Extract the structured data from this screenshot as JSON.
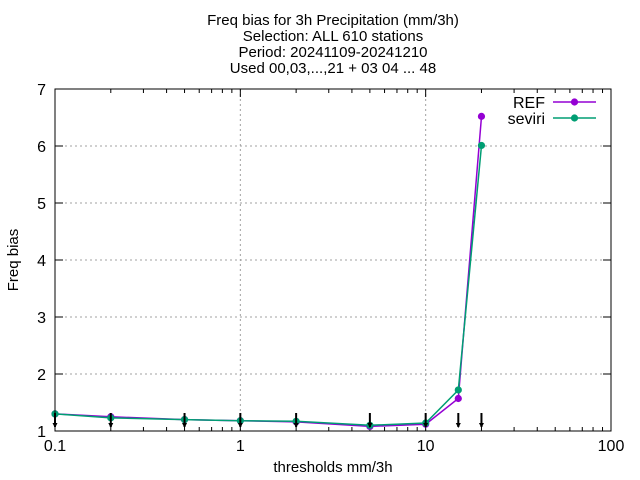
{
  "chart_data": {
    "type": "line",
    "title": [
      "Freq bias  for 3h Precipitation (mm/3h)",
      "Selection: ALL    610 stations",
      "Period: 20241109-20241210",
      "Used 00,03,...,21 + 03 04 ... 48"
    ],
    "xlabel": "thresholds mm/3h",
    "ylabel": "Freq bias",
    "xscale": "log",
    "xlim": [
      0.1,
      100
    ],
    "ylim": [
      1,
      7
    ],
    "xticks": [
      0.1,
      1,
      10,
      100
    ],
    "xtick_labels": [
      "0.1",
      "1",
      "10",
      "100"
    ],
    "yticks": [
      1,
      2,
      3,
      4,
      5,
      6,
      7
    ],
    "ytick_labels": [
      "1",
      "2",
      "3",
      "4",
      "5",
      "6",
      "7"
    ],
    "grid": true,
    "legend_position": "top-right",
    "x": [
      0.1,
      0.2,
      0.5,
      1,
      2,
      5,
      10,
      15,
      20
    ],
    "series": [
      {
        "name": "REF",
        "color": "#9400d3",
        "values": [
          1.3,
          1.25,
          1.2,
          1.18,
          1.16,
          1.08,
          1.12,
          1.57,
          6.52
        ]
      },
      {
        "name": "seviri",
        "color": "#009e73",
        "values": [
          1.3,
          1.23,
          1.2,
          1.18,
          1.17,
          1.1,
          1.14,
          1.72,
          6.01
        ]
      }
    ],
    "threshold_markers": [
      0.1,
      0.2,
      0.5,
      1,
      2,
      5,
      10,
      15,
      20
    ]
  }
}
